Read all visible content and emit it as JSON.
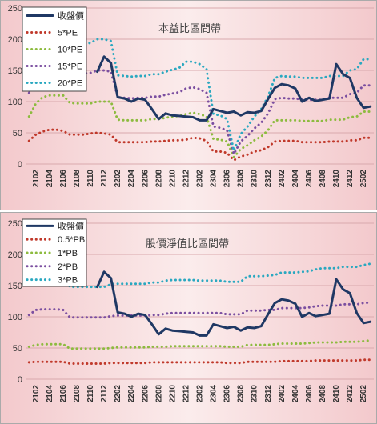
{
  "chart_data": [
    {
      "type": "line",
      "title": "本益比區間帶",
      "ylim": [
        0,
        250
      ],
      "yticks": [
        0,
        50,
        100,
        150,
        200,
        250
      ],
      "x": [
        "2101",
        "2102",
        "2103",
        "2104",
        "2105",
        "2106",
        "2107",
        "2108",
        "2109",
        "2110",
        "2111",
        "2112",
        "2201",
        "2202",
        "2203",
        "2204",
        "2205",
        "2206",
        "2207",
        "2208",
        "2209",
        "2210",
        "2211",
        "2212",
        "2301",
        "2302",
        "2303",
        "2304",
        "2305",
        "2306",
        "2307",
        "2308",
        "2309",
        "2310",
        "2311",
        "2312",
        "2401",
        "2402",
        "2403",
        "2404",
        "2405",
        "2406",
        "2407",
        "2408",
        "2409",
        "2410",
        "2411",
        "2412",
        "2501",
        "2502",
        "2503"
      ],
      "xtick_labels": [
        "2102",
        "2104",
        "2106",
        "2108",
        "2110",
        "2112",
        "2202",
        "2204",
        "2206",
        "2208",
        "2210",
        "2212",
        "2302",
        "2304",
        "2306",
        "2308",
        "2310",
        "2312",
        "2402",
        "2404",
        "2406",
        "2408",
        "2410",
        "2412",
        "2502"
      ],
      "series": [
        {
          "name": "收盤價",
          "color": "#1f3864",
          "style": "solid",
          "values": [
            null,
            null,
            null,
            null,
            null,
            null,
            null,
            null,
            null,
            null,
            148,
            172,
            162,
            107,
            105,
            100,
            105,
            103,
            88,
            72,
            81,
            78,
            77,
            76,
            75,
            70,
            70,
            88,
            85,
            82,
            84,
            78,
            83,
            82,
            85,
            104,
            122,
            128,
            126,
            121,
            100,
            106,
            101,
            103,
            105,
            160,
            144,
            138,
            106,
            90,
            92
          ]
        },
        {
          "name": "5*PE",
          "color": "#c0392b",
          "style": "dot",
          "values": [
            37,
            47,
            52,
            55,
            55,
            53,
            47,
            47,
            47,
            49,
            50,
            49,
            47,
            35,
            35,
            35,
            35,
            35,
            36,
            36,
            37,
            38,
            38,
            39,
            42,
            41,
            37,
            20,
            20,
            18,
            6,
            12,
            15,
            20,
            22,
            27,
            36,
            37,
            37,
            37,
            35,
            35,
            35,
            35,
            36,
            36,
            36,
            38,
            38,
            42,
            42
          ]
        },
        {
          "name": "10*PE",
          "color": "#8dbb3f",
          "style": "dot",
          "values": [
            76,
            97,
            107,
            110,
            110,
            110,
            98,
            97,
            97,
            97,
            100,
            100,
            100,
            71,
            70,
            70,
            70,
            70,
            72,
            72,
            74,
            76,
            77,
            80,
            82,
            80,
            76,
            40,
            39,
            36,
            11,
            24,
            30,
            38,
            44,
            54,
            70,
            70,
            70,
            70,
            69,
            69,
            69,
            69,
            71,
            71,
            71,
            75,
            76,
            84,
            84
          ]
        },
        {
          "name": "15*PE",
          "color": "#7b4fa0",
          "style": "dot",
          "values": [
            114,
            143,
            158,
            162,
            162,
            162,
            145,
            145,
            145,
            146,
            150,
            150,
            148,
            107,
            106,
            105,
            106,
            106,
            108,
            108,
            111,
            113,
            115,
            121,
            123,
            120,
            114,
            60,
            58,
            54,
            16,
            36,
            45,
            57,
            66,
            81,
            104,
            106,
            105,
            105,
            103,
            103,
            103,
            103,
            106,
            106,
            106,
            112,
            114,
            126,
            126
          ]
        },
        {
          "name": "20*PE",
          "color": "#2aa8c0",
          "style": "dot",
          "values": [
            152,
            190,
            205,
            210,
            210,
            210,
            193,
            192,
            193,
            194,
            200,
            200,
            197,
            142,
            141,
            140,
            141,
            141,
            144,
            144,
            148,
            151,
            154,
            164,
            164,
            160,
            152,
            80,
            78,
            72,
            21,
            48,
            60,
            76,
            88,
            108,
            138,
            141,
            140,
            140,
            138,
            138,
            138,
            138,
            141,
            141,
            141,
            150,
            152,
            168,
            168
          ]
        }
      ]
    },
    {
      "type": "line",
      "title": "股價淨值比區間帶",
      "ylim": [
        0,
        250
      ],
      "yticks": [
        0,
        50,
        100,
        150,
        200,
        250
      ],
      "x": [
        "2101",
        "2102",
        "2103",
        "2104",
        "2105",
        "2106",
        "2107",
        "2108",
        "2109",
        "2110",
        "2111",
        "2112",
        "2201",
        "2202",
        "2203",
        "2204",
        "2205",
        "2206",
        "2207",
        "2208",
        "2209",
        "2210",
        "2211",
        "2212",
        "2301",
        "2302",
        "2303",
        "2304",
        "2305",
        "2306",
        "2307",
        "2308",
        "2309",
        "2310",
        "2311",
        "2312",
        "2401",
        "2402",
        "2403",
        "2404",
        "2405",
        "2406",
        "2407",
        "2408",
        "2409",
        "2410",
        "2411",
        "2412",
        "2501",
        "2502",
        "2503"
      ],
      "xtick_labels": [
        "2102",
        "2104",
        "2106",
        "2108",
        "2110",
        "2112",
        "2202",
        "2204",
        "2206",
        "2208",
        "2210",
        "2212",
        "2302",
        "2304",
        "2306",
        "2308",
        "2310",
        "2312",
        "2402",
        "2404",
        "2406",
        "2408",
        "2410",
        "2412",
        "2502"
      ],
      "series": [
        {
          "name": "收盤價",
          "color": "#1f3864",
          "style": "solid",
          "values": [
            null,
            null,
            null,
            null,
            null,
            null,
            null,
            null,
            null,
            null,
            148,
            172,
            162,
            107,
            105,
            100,
            105,
            103,
            88,
            72,
            81,
            78,
            77,
            76,
            75,
            70,
            70,
            88,
            85,
            82,
            84,
            78,
            83,
            82,
            85,
            104,
            122,
            128,
            126,
            121,
            100,
            106,
            101,
            103,
            105,
            160,
            144,
            138,
            106,
            90,
            92
          ]
        },
        {
          "name": "0.5*PB",
          "color": "#c0392b",
          "style": "dot",
          "values": [
            27,
            28,
            28,
            28,
            28,
            28,
            25,
            25,
            25,
            25,
            25,
            25,
            26,
            26,
            26,
            26,
            26,
            26,
            27,
            27,
            27,
            27,
            27,
            27,
            27,
            27,
            27,
            27,
            27,
            26,
            26,
            26,
            28,
            28,
            28,
            28,
            28,
            29,
            29,
            29,
            29,
            29,
            30,
            30,
            30,
            30,
            30,
            30,
            30,
            31,
            31
          ]
        },
        {
          "name": "1*PB",
          "color": "#8dbb3f",
          "style": "dot",
          "values": [
            52,
            55,
            56,
            56,
            56,
            56,
            49,
            49,
            49,
            49,
            49,
            49,
            50,
            51,
            51,
            51,
            51,
            51,
            52,
            52,
            52,
            53,
            53,
            53,
            53,
            53,
            53,
            53,
            53,
            52,
            52,
            52,
            55,
            55,
            55,
            55,
            56,
            57,
            57,
            57,
            57,
            58,
            59,
            59,
            59,
            59,
            60,
            60,
            60,
            61,
            62
          ]
        },
        {
          "name": "2*PB",
          "color": "#7b4fa0",
          "style": "dot",
          "values": [
            103,
            111,
            112,
            112,
            112,
            111,
            99,
            99,
            99,
            99,
            99,
            99,
            101,
            102,
            102,
            102,
            102,
            102,
            103,
            103,
            105,
            106,
            106,
            106,
            106,
            106,
            106,
            106,
            106,
            104,
            104,
            104,
            110,
            110,
            110,
            111,
            111,
            114,
            114,
            114,
            114,
            115,
            117,
            118,
            118,
            118,
            120,
            120,
            120,
            122,
            123
          ]
        },
        {
          "name": "3*PB",
          "color": "#2aa8c0",
          "style": "dot",
          "values": [
            155,
            166,
            168,
            168,
            168,
            166,
            148,
            148,
            148,
            148,
            148,
            148,
            152,
            153,
            153,
            153,
            153,
            153,
            155,
            155,
            158,
            159,
            159,
            159,
            159,
            158,
            158,
            158,
            158,
            156,
            156,
            156,
            165,
            165,
            165,
            166,
            167,
            171,
            171,
            171,
            172,
            173,
            176,
            178,
            178,
            178,
            180,
            180,
            180,
            183,
            185
          ]
        }
      ]
    }
  ]
}
